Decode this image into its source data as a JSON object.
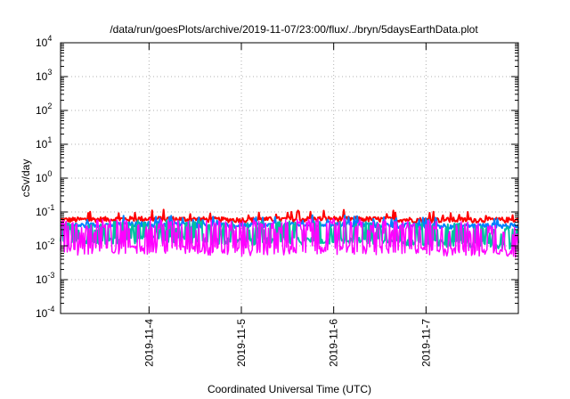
{
  "title": "/data/run/goesPlots/archive/2019-11-07/23:00/flux/../bryn/5daysEarthData.plot",
  "chart_data": {
    "type": "line",
    "title": "/data/run/goesPlots/archive/2019-11-07/23:00/flux/../bryn/5daysEarthData.plot",
    "xlabel": "Coordinated Universal Time (UTC)",
    "ylabel": "cSv/day",
    "yscale": "log",
    "ylim": [
      0.0001,
      10000
    ],
    "xlim": [
      "2019-11-03T01:00",
      "2019-11-08T00:00"
    ],
    "grid": true,
    "y_ticks": [
      {
        "base": "10",
        "exp": "4"
      },
      {
        "base": "10",
        "exp": "3"
      },
      {
        "base": "10",
        "exp": "2"
      },
      {
        "base": "10",
        "exp": "1"
      },
      {
        "base": "10",
        "exp": "0"
      },
      {
        "base": "10",
        "exp": "-1"
      },
      {
        "base": "10",
        "exp": "-2"
      },
      {
        "base": "10",
        "exp": "-3"
      },
      {
        "base": "10",
        "exp": "-4"
      }
    ],
    "x_ticks": [
      "2019-11-4",
      "2019-11-5",
      "2019-11-6",
      "2019-11-7"
    ],
    "series": [
      {
        "color": "#ff0000",
        "x": [
          "2019-11-03T01:00",
          "2019-11-04T00:00",
          "2019-11-05T00:00",
          "2019-11-06T00:00",
          "2019-11-07T00:00",
          "2019-11-08T00:00"
        ],
        "values": [
          0.06,
          0.065,
          0.06,
          0.065,
          0.06,
          0.06
        ]
      },
      {
        "color": "#0080ff",
        "x": [
          "2019-11-03T01:00",
          "2019-11-04T00:00",
          "2019-11-05T00:00",
          "2019-11-06T00:00",
          "2019-11-07T00:00",
          "2019-11-08T00:00"
        ],
        "values": [
          0.04,
          0.045,
          0.04,
          0.045,
          0.04,
          0.04
        ]
      },
      {
        "color": "#00c0a0",
        "x": [
          "2019-11-03T01:00",
          "2019-11-04T00:00",
          "2019-11-05T00:00",
          "2019-11-06T00:00",
          "2019-11-07T00:00",
          "2019-11-08T00:00"
        ],
        "values": [
          0.012,
          0.015,
          0.013,
          0.014,
          0.012,
          0.01
        ]
      },
      {
        "color": "#ff00ff",
        "x": [
          "2019-11-03T01:00",
          "2019-11-04T00:00",
          "2019-11-05T00:00",
          "2019-11-06T00:00",
          "2019-11-07T00:00",
          "2019-11-08T00:00"
        ],
        "values": [
          0.007,
          0.008,
          0.007,
          0.008,
          0.007,
          0.006
        ]
      }
    ]
  },
  "colors": {
    "grid": "#b0b0b0",
    "axis": "#000000"
  }
}
